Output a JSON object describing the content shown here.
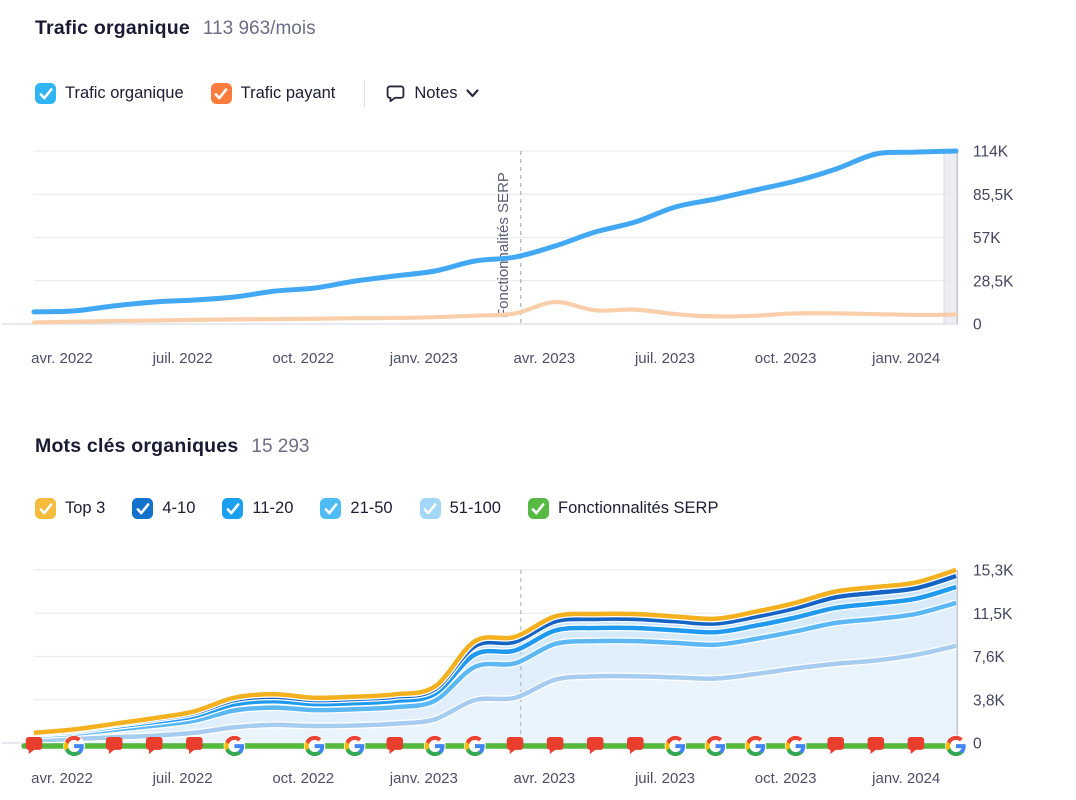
{
  "traffic": {
    "title": "Trafic organique",
    "value": "113 963/mois",
    "legend": [
      {
        "label": "Trafic organique",
        "color": "#2FB5F3",
        "checked": true
      },
      {
        "label": "Trafic payant",
        "color": "#FB7C3C",
        "checked": true
      }
    ],
    "notes": {
      "label": "Notes"
    },
    "chart_data": {
      "type": "line",
      "unit": "K",
      "x_tick_labels": [
        "avr. 2022",
        "juil. 2022",
        "oct. 2022",
        "janv. 2023",
        "avr. 2023",
        "juil. 2023",
        "oct. 2023",
        "janv. 2024"
      ],
      "y_tick_labels": [
        "114K",
        "85,5K",
        "57K",
        "28,5K",
        "0"
      ],
      "y_max_k": 114,
      "grid": true,
      "legend_position": "top",
      "series": [
        {
          "name": "Trafic organique",
          "color": "#43A8F4",
          "values_k": [
            8,
            8.6,
            11.9,
            14.5,
            15.8,
            17.8,
            21.7,
            23.7,
            28.3,
            31.6,
            34.9,
            41.5,
            44.1,
            51.4,
            60.6,
            67.2,
            77.1,
            82.4,
            88.3,
            94.2,
            102.1,
            112,
            113.3,
            114
          ]
        },
        {
          "name": "Trafic payant",
          "color": "#F9CFAB",
          "values_k": [
            1,
            1.5,
            2,
            2.3,
            2.7,
            3,
            3.2,
            3.5,
            3.8,
            4,
            4.5,
            5.5,
            7,
            14.5,
            9,
            9.5,
            6.5,
            5,
            5.5,
            7,
            7,
            6.5,
            6,
            6.2
          ]
        }
      ],
      "annotation": {
        "label": "Fonctionnalités SERP",
        "x_frac": 0.528
      }
    }
  },
  "keywords": {
    "title": "Mots clés organiques",
    "value": "15 293",
    "legend": [
      {
        "label": "Top 3",
        "color": "#F5BB3D",
        "checked": true
      },
      {
        "label": "4-10",
        "color": "#1271CB",
        "checked": true
      },
      {
        "label": "11-20",
        "color": "#1B9FEF",
        "checked": true
      },
      {
        "label": "21-50",
        "color": "#4FBCF5",
        "checked": true
      },
      {
        "label": "51-100",
        "color": "#A4D6F8",
        "checked": true
      },
      {
        "label": "Fonctionnalités SERP",
        "color": "#56B944",
        "checked": true
      }
    ],
    "chart_data": {
      "type": "area-stacked",
      "unit": "K",
      "x_tick_labels": [
        "avr. 2022",
        "juil. 2022",
        "oct. 2022",
        "janv. 2023",
        "avr. 2023",
        "juil. 2023",
        "oct. 2023",
        "janv. 2024"
      ],
      "y_tick_labels": [
        "15,3K",
        "11,5K",
        "7,6K",
        "3,8K",
        "0"
      ],
      "y_max_k": 15.3,
      "grid": true,
      "series_bottom_to_top": [
        {
          "name": "51-100",
          "stroke": "#A6CDEF",
          "fill": "#EAF4FC",
          "values_k": [
            0.25,
            0.35,
            0.5,
            0.65,
            0.9,
            1.4,
            1.6,
            1.5,
            1.55,
            1.7,
            2.1,
            3.8,
            4,
            5.6,
            5.9,
            5.9,
            5.8,
            5.7,
            6.1,
            6.6,
            7,
            7.3,
            7.8,
            8.6
          ]
        },
        {
          "name": "21-50",
          "stroke": "#5CB8F4",
          "fill": "#E0EFFB",
          "values_k": [
            0.37,
            0.48,
            0.68,
            0.88,
            1.07,
            1.47,
            1.53,
            1.41,
            1.44,
            1.47,
            1.64,
            2.94,
            3.05,
            3.16,
            3.11,
            3.11,
            3.05,
            2.99,
            3.11,
            3.28,
            3.62,
            3.67,
            3.62,
            3.79
          ]
        },
        {
          "name": "11-20",
          "stroke": "#1F9AEF",
          "fill": "#D6EAFA",
          "values_k": [
            0.14,
            0.18,
            0.25,
            0.33,
            0.4,
            0.55,
            0.57,
            0.53,
            0.54,
            0.55,
            0.61,
            1.09,
            1.13,
            1.18,
            1.16,
            1.16,
            1.13,
            1.11,
            1.16,
            1.22,
            1.34,
            1.37,
            1.34,
            1.41
          ]
        },
        {
          "name": "4-10",
          "stroke": "#1564C4",
          "fill": "#CDE6F9",
          "values_k": [
            0.09,
            0.12,
            0.17,
            0.22,
            0.28,
            0.38,
            0.39,
            0.36,
            0.37,
            0.38,
            0.42,
            0.75,
            0.78,
            0.81,
            0.8,
            0.8,
            0.78,
            0.77,
            0.8,
            0.84,
            0.93,
            0.94,
            0.93,
            0.97
          ]
        },
        {
          "name": "Top 3",
          "stroke": "#F4B11F",
          "fill": "#FFFFFF",
          "values_k": [
            0.05,
            0.07,
            0.1,
            0.12,
            0.15,
            0.21,
            0.22,
            0.2,
            0.2,
            0.21,
            0.23,
            0.42,
            0.43,
            0.45,
            0.44,
            0.44,
            0.43,
            0.42,
            0.44,
            0.46,
            0.51,
            0.52,
            0.51,
            0.54
          ]
        }
      ],
      "serp_line_color": "#55B93E",
      "marker_colors": {
        "flag": "#E93E2E",
        "google": [
          "#4285F4",
          "#34A853",
          "#FBBC05",
          "#EA4335"
        ]
      },
      "markers": [
        "flag",
        "google",
        "flag",
        "flag",
        "flag",
        "google",
        null,
        "google",
        "google",
        "flag",
        "google",
        "google",
        "flag",
        "flag",
        "flag",
        "flag",
        "google",
        "google",
        "google",
        "google",
        "flag",
        "flag",
        "flag",
        "google"
      ],
      "annotation_x_frac": 0.528
    }
  }
}
